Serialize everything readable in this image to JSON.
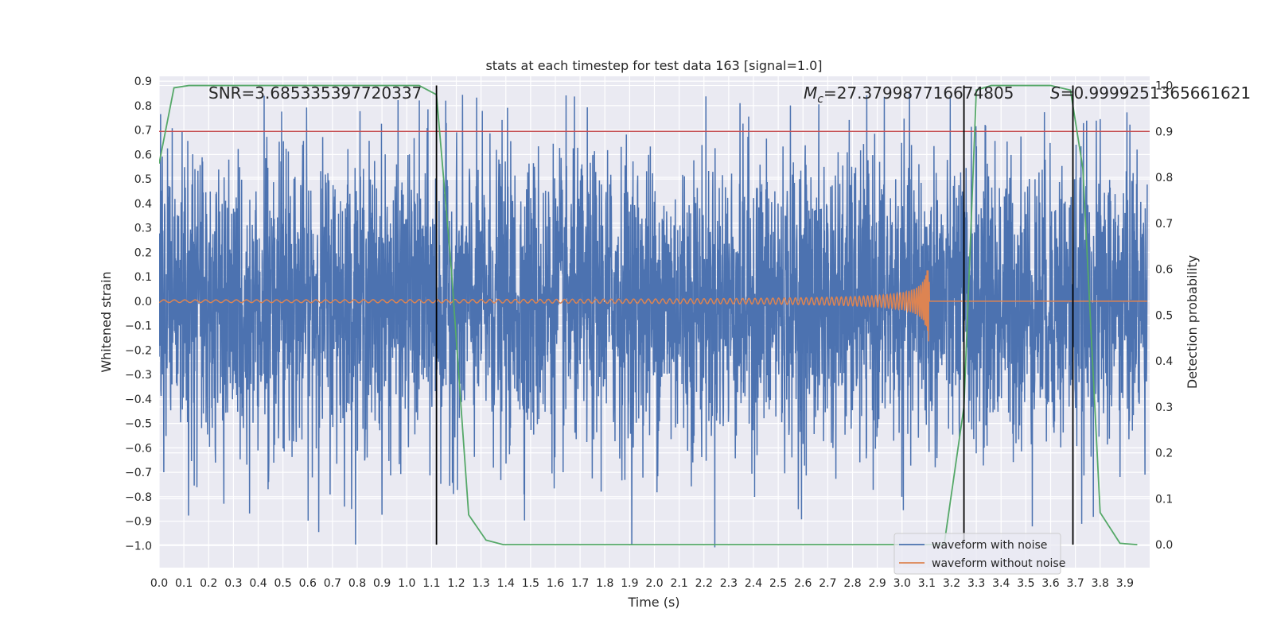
{
  "chart_data": {
    "type": "line",
    "title": "stats at each timestep for test data 163 [signal=1.0]",
    "xlabel": "Time (s)",
    "ylabel": "Whitened strain",
    "y2label": "Detection probability",
    "xlim": [
      0.0,
      4.0
    ],
    "ylim": [
      -1.09,
      0.92
    ],
    "y2lim": [
      -0.05,
      1.02
    ],
    "x_ticks": [
      "0.0",
      "0.1",
      "0.2",
      "0.3",
      "0.4",
      "0.5",
      "0.6",
      "0.7",
      "0.8",
      "0.9",
      "1.0",
      "1.1",
      "1.2",
      "1.3",
      "1.4",
      "1.5",
      "1.6",
      "1.7",
      "1.8",
      "1.9",
      "2.0",
      "2.1",
      "2.2",
      "2.3",
      "2.4",
      "2.5",
      "2.6",
      "2.7",
      "2.8",
      "2.9",
      "3.0",
      "3.1",
      "3.2",
      "3.3",
      "3.4",
      "3.5",
      "3.6",
      "3.7",
      "3.8",
      "3.9"
    ],
    "y_ticks": [
      "0.9",
      "0.8",
      "0.7",
      "0.6",
      "0.5",
      "0.4",
      "0.3",
      "0.2",
      "0.1",
      "0.0",
      "−0.1",
      "−0.2",
      "−0.3",
      "−0.4",
      "−0.5",
      "−0.6",
      "−0.7",
      "−0.8",
      "−0.9",
      "−1.0"
    ],
    "y2_ticks": [
      "1.0",
      "0.9",
      "0.8",
      "0.7",
      "0.6",
      "0.5",
      "0.4",
      "0.3",
      "0.2",
      "0.1",
      "0.0"
    ],
    "grid": true,
    "legend_placement": "lower-right",
    "annotations": {
      "snr": "SNR=3.685335397720337",
      "mc_symbol": "M",
      "mc_sub": "c",
      "mc_value": "=27.379987716674805",
      "s_symbol": "S",
      "s_value": "=0.9999251365661621"
    },
    "series": [
      {
        "name": "waveform with noise",
        "color": "#4c72b0",
        "axis": "left",
        "kind": "noise",
        "amplitude": 0.3
      },
      {
        "name": "waveform without noise",
        "color": "#dd8452",
        "axis": "left",
        "kind": "chirp",
        "merger_time": 3.11,
        "peak_amplitude": 0.2
      },
      {
        "color": "#55a868",
        "axis": "right",
        "x": [
          0.0,
          0.06,
          0.12,
          0.2,
          0.3,
          0.5,
          0.7,
          0.9,
          1.05,
          1.12,
          1.18,
          1.25,
          1.32,
          1.39,
          1.45,
          1.6,
          2.0,
          2.5,
          2.9,
          3.1,
          3.17,
          3.25,
          3.3,
          3.36,
          3.45,
          3.6,
          3.68,
          3.73,
          3.8,
          3.88,
          3.95
        ],
        "y": [
          0.83,
          0.995,
          1.0,
          1.0,
          1.0,
          1.0,
          1.0,
          1.0,
          1.0,
          0.98,
          0.6,
          0.065,
          0.01,
          0.0,
          0.0,
          0.0,
          0.0,
          0.0,
          0.0,
          0.0,
          0.0,
          0.3,
          0.99,
          1.0,
          1.0,
          1.0,
          0.99,
          0.82,
          0.07,
          0.003,
          0.0
        ]
      }
    ],
    "hlines": [
      {
        "axis": "right",
        "y": 0.9,
        "color": "#c44e52"
      }
    ],
    "vlines": [
      {
        "x": 1.12,
        "color": "#000000"
      },
      {
        "x": 3.25,
        "color": "#000000"
      },
      {
        "x": 3.69,
        "color": "#000000"
      }
    ]
  }
}
